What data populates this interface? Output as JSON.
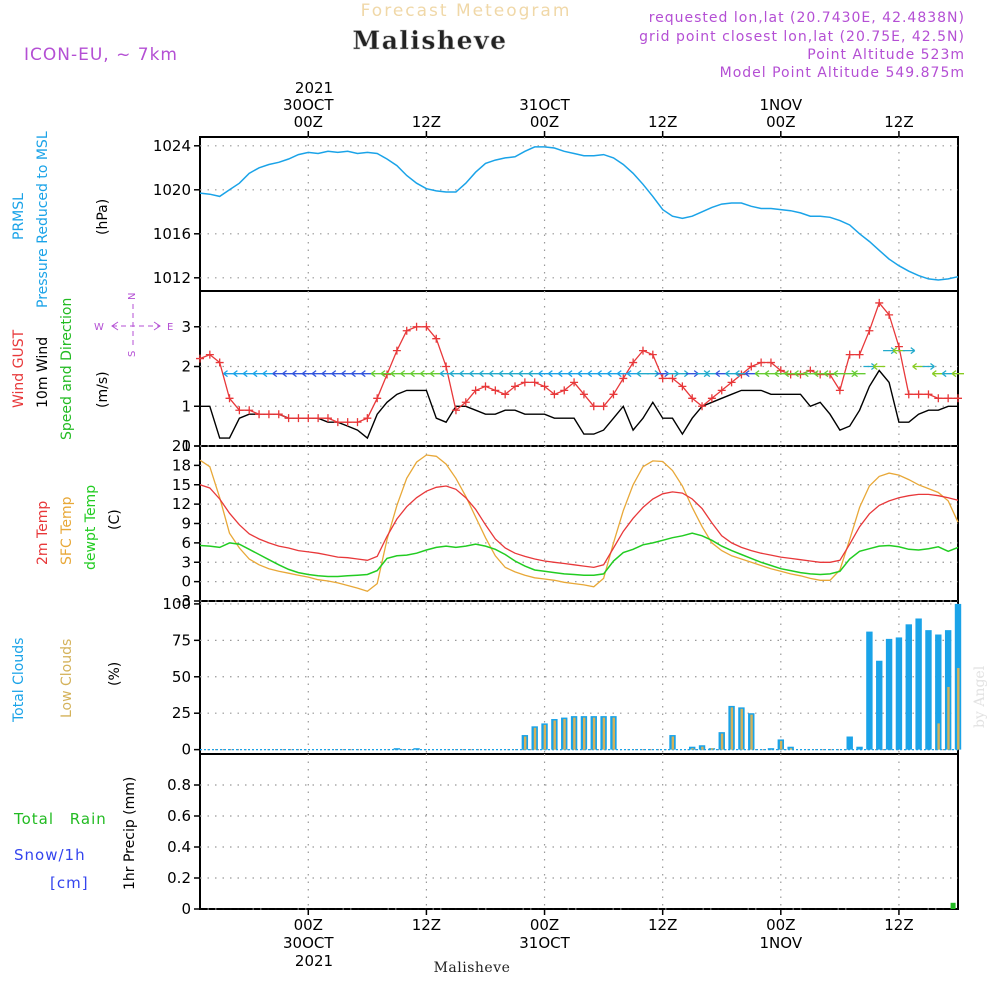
{
  "header": {
    "product": "Forecast Meteogram",
    "station": "Malisheve",
    "model": "ICON-EU, ~ 7km",
    "requested": "requested lon,lat (20.7430E, 42.4838N)",
    "grid_point": "grid point closest lon,lat (20.75E, 42.5N)",
    "point_altitude": "Point Altitude 523m",
    "model_altitude": "Model Point Altitude 549.875m",
    "footer_station": "Malisheve",
    "watermark": "by Angel"
  },
  "colors": {
    "pressure": "#1aa3e8",
    "gust": "#e8383a",
    "wind": "#000000",
    "dir_label": "#22bb22",
    "t2m": "#e8383a",
    "sfc": "#e8a838",
    "dew": "#22cc22",
    "total_cloud": "#1aa3e8",
    "low_cloud": "#d4b25a",
    "rain": "#22bb22",
    "snow": "#3344ee",
    "meta": "#b44fd4",
    "axis": "#000000"
  },
  "time_axis": {
    "top_year": "2021",
    "bottom_year": "2021",
    "ticks": [
      {
        "hour": 0,
        "label": "00Z",
        "date": "30OCT"
      },
      {
        "hour": 12,
        "label": "12Z",
        "date": ""
      },
      {
        "hour": 24,
        "label": "00Z",
        "date": "31OCT"
      },
      {
        "hour": 36,
        "label": "12Z",
        "date": ""
      },
      {
        "hour": 48,
        "label": "00Z",
        "date": "1NOV"
      },
      {
        "hour": 60,
        "label": "12Z",
        "date": ""
      }
    ],
    "range_hours": [
      -11,
      66
    ]
  },
  "chart_data": [
    {
      "type": "line",
      "panel": "pressure",
      "title": "PRMSL Pressure Reduced to MSL",
      "ylabel": "(hPa)",
      "label_lines": [
        "PRMSL",
        "Pressure Reduced to MSL"
      ],
      "unit": "(hPa)",
      "ylim": [
        1010.8,
        1024.8
      ],
      "yticks": [
        1012,
        1016,
        1020,
        1024
      ],
      "grid": true,
      "x_hours": [
        -11,
        -10,
        -9,
        -8,
        -7,
        -6,
        -5,
        -4,
        -3,
        -2,
        -1,
        0,
        1,
        2,
        3,
        4,
        5,
        6,
        7,
        8,
        9,
        10,
        11,
        12,
        13,
        14,
        15,
        16,
        17,
        18,
        19,
        20,
        21,
        22,
        23,
        24,
        25,
        26,
        27,
        28,
        29,
        30,
        31,
        32,
        33,
        34,
        35,
        36,
        37,
        38,
        39,
        40,
        41,
        42,
        43,
        44,
        45,
        46,
        47,
        48,
        49,
        50,
        51,
        52,
        53,
        54,
        55,
        56,
        57,
        58,
        59,
        60,
        61,
        62,
        63,
        64,
        65,
        66
      ],
      "series": [
        {
          "name": "PRMSL",
          "values": [
            1019.7,
            1019.6,
            1019.4,
            1020.0,
            1020.6,
            1021.5,
            1022.0,
            1022.3,
            1022.5,
            1022.8,
            1023.2,
            1023.4,
            1023.3,
            1023.5,
            1023.4,
            1023.5,
            1023.3,
            1023.4,
            1023.3,
            1022.8,
            1022.2,
            1021.3,
            1020.6,
            1020.1,
            1019.9,
            1019.8,
            1019.8,
            1020.6,
            1021.6,
            1022.4,
            1022.7,
            1022.9,
            1023.0,
            1023.5,
            1023.9,
            1023.9,
            1023.8,
            1023.5,
            1023.3,
            1023.1,
            1023.1,
            1023.2,
            1022.9,
            1022.3,
            1021.5,
            1020.5,
            1019.4,
            1018.2,
            1017.6,
            1017.4,
            1017.6,
            1018.0,
            1018.4,
            1018.7,
            1018.8,
            1018.8,
            1018.5,
            1018.3,
            1018.3,
            1018.2,
            1018.1,
            1017.9,
            1017.6,
            1017.6,
            1017.5,
            1017.2,
            1016.8,
            1016.0,
            1015.3,
            1014.5,
            1013.7,
            1013.1,
            1012.6,
            1012.2,
            1011.9,
            1011.8,
            1011.9,
            1012.1
          ]
        }
      ]
    },
    {
      "type": "line",
      "panel": "wind",
      "title": "Wind GUST / 10m Wind / Speed and Direction",
      "ylabel": "(m/s)",
      "label_wind_gust": "Wind GUST",
      "label_wind_10m": "10m Wind",
      "label_dir": "Speed and Direction",
      "unit": "(m/s)",
      "compass": {
        "N": "N",
        "E": "E",
        "S": "S",
        "W": "W"
      },
      "ylim": [
        0,
        3.9
      ],
      "yticks": [
        0,
        1,
        2,
        3
      ],
      "grid": true,
      "x_hours": [
        -11,
        -10,
        -9,
        -8,
        -7,
        -6,
        -5,
        -4,
        -3,
        -2,
        -1,
        0,
        1,
        2,
        3,
        4,
        5,
        6,
        7,
        8,
        9,
        10,
        11,
        12,
        13,
        14,
        15,
        16,
        17,
        18,
        19,
        20,
        21,
        22,
        23,
        24,
        25,
        26,
        27,
        28,
        29,
        30,
        31,
        32,
        33,
        34,
        35,
        36,
        37,
        38,
        39,
        40,
        41,
        42,
        43,
        44,
        45,
        46,
        47,
        48,
        49,
        50,
        51,
        52,
        53,
        54,
        55,
        56,
        57,
        58,
        59,
        60,
        61,
        62,
        63,
        64,
        65,
        66
      ],
      "series": [
        {
          "name": "Wind GUST",
          "marker": "+",
          "values": [
            2.2,
            2.3,
            2.1,
            1.2,
            0.9,
            0.9,
            0.8,
            0.8,
            0.8,
            0.7,
            0.7,
            0.7,
            0.7,
            0.7,
            0.6,
            0.6,
            0.6,
            0.7,
            1.2,
            1.8,
            2.4,
            2.9,
            3.0,
            3.0,
            2.7,
            2.0,
            0.9,
            1.1,
            1.4,
            1.5,
            1.4,
            1.3,
            1.5,
            1.6,
            1.6,
            1.5,
            1.3,
            1.4,
            1.6,
            1.3,
            1.0,
            1.0,
            1.3,
            1.7,
            2.1,
            2.4,
            2.3,
            1.7,
            1.7,
            1.5,
            1.2,
            1.0,
            1.2,
            1.4,
            1.6,
            1.8,
            2.0,
            2.1,
            2.1,
            1.9,
            1.8,
            1.8,
            1.9,
            1.8,
            1.8,
            1.4,
            2.3,
            2.3,
            2.9,
            3.6,
            3.3,
            2.5,
            1.3,
            1.3,
            1.3,
            1.2,
            1.2,
            1.2
          ]
        },
        {
          "name": "10m Wind",
          "values": [
            1.0,
            1.0,
            0.2,
            0.2,
            0.7,
            0.8,
            0.8,
            0.8,
            0.8,
            0.7,
            0.7,
            0.7,
            0.7,
            0.6,
            0.6,
            0.5,
            0.4,
            0.2,
            0.8,
            1.1,
            1.3,
            1.4,
            1.4,
            1.4,
            0.7,
            0.6,
            1.0,
            1.0,
            0.9,
            0.8,
            0.8,
            0.9,
            0.9,
            0.8,
            0.8,
            0.8,
            0.7,
            0.7,
            0.7,
            0.3,
            0.3,
            0.4,
            0.7,
            1.0,
            0.4,
            0.7,
            1.1,
            0.7,
            0.7,
            0.3,
            0.7,
            1.0,
            1.1,
            1.2,
            1.3,
            1.4,
            1.4,
            1.4,
            1.3,
            1.3,
            1.3,
            1.3,
            1.0,
            1.1,
            0.8,
            0.4,
            0.5,
            0.9,
            1.5,
            1.9,
            1.6,
            0.6,
            0.6,
            0.8,
            0.9,
            0.9,
            1.0,
            1.0
          ]
        },
        {
          "name": "Speed and Direction",
          "note": "wind barbs plotted along 10m wind speed ~1.8 m/s"
        }
      ]
    },
    {
      "type": "line",
      "panel": "temperature",
      "title": "2m Temp / SFC Temp / dewpt Temp",
      "ylabel": "(C)",
      "label_2m": "2m Temp",
      "label_sfc": "SFC Temp",
      "label_dew": "dewpt Temp",
      "unit": "(C)",
      "ylim": [
        -3,
        21
      ],
      "yticks": [
        -3,
        0,
        3,
        6,
        9,
        12,
        15,
        18,
        21
      ],
      "grid": true,
      "x_hours": [
        -11,
        -10,
        -9,
        -8,
        -7,
        -6,
        -5,
        -4,
        -3,
        -2,
        -1,
        0,
        1,
        2,
        3,
        4,
        5,
        6,
        7,
        8,
        9,
        10,
        11,
        12,
        13,
        14,
        15,
        16,
        17,
        18,
        19,
        20,
        21,
        22,
        23,
        24,
        25,
        26,
        27,
        28,
        29,
        30,
        31,
        32,
        33,
        34,
        35,
        36,
        37,
        38,
        39,
        40,
        41,
        42,
        43,
        44,
        45,
        46,
        47,
        48,
        49,
        50,
        51,
        52,
        53,
        54,
        55,
        56,
        57,
        58,
        59,
        60,
        61,
        62,
        63,
        64,
        65,
        66
      ],
      "series": [
        {
          "name": "2m Temp",
          "values": [
            15.0,
            14.5,
            12.8,
            10.6,
            8.8,
            7.4,
            6.6,
            6.0,
            5.5,
            5.2,
            4.8,
            4.6,
            4.4,
            4.1,
            3.8,
            3.7,
            3.5,
            3.3,
            3.9,
            7.0,
            9.7,
            11.6,
            13.0,
            14.0,
            14.6,
            14.8,
            14.3,
            13.0,
            11.2,
            8.8,
            6.6,
            5.2,
            4.4,
            3.9,
            3.5,
            3.2,
            3.0,
            2.8,
            2.6,
            2.4,
            2.2,
            2.6,
            5.2,
            7.8,
            9.8,
            11.5,
            12.8,
            13.6,
            13.9,
            13.7,
            12.8,
            11.3,
            9.1,
            7.1,
            6.0,
            5.3,
            4.8,
            4.4,
            4.1,
            3.8,
            3.6,
            3.4,
            3.2,
            3.0,
            3.0,
            3.3,
            5.8,
            8.5,
            10.5,
            11.8,
            12.5,
            13.0,
            13.3,
            13.5,
            13.5,
            13.3,
            13.0,
            12.6
          ]
        },
        {
          "name": "SFC Temp",
          "values": [
            18.8,
            17.8,
            13.0,
            7.5,
            5.2,
            3.5,
            2.6,
            2.0,
            1.6,
            1.3,
            1.0,
            0.7,
            0.3,
            0.1,
            -0.2,
            -0.6,
            -1.0,
            -1.5,
            -0.3,
            6.5,
            11.8,
            16.0,
            18.5,
            19.6,
            19.4,
            18.2,
            16.0,
            13.2,
            10.0,
            6.8,
            4.0,
            2.2,
            1.5,
            1.0,
            0.6,
            0.4,
            0.2,
            -0.1,
            -0.3,
            -0.5,
            -0.8,
            0.5,
            6.0,
            11.0,
            15.0,
            17.8,
            18.7,
            18.6,
            17.2,
            14.8,
            11.5,
            8.5,
            6.0,
            4.8,
            4.0,
            3.5,
            3.0,
            2.5,
            2.0,
            1.6,
            1.2,
            0.9,
            0.5,
            0.2,
            0.2,
            1.8,
            6.5,
            11.5,
            14.8,
            16.3,
            16.8,
            16.5,
            15.8,
            15.0,
            14.4,
            13.8,
            12.5,
            9.2
          ]
        },
        {
          "name": "dewpt Temp",
          "values": [
            5.6,
            5.5,
            5.3,
            6.0,
            5.8,
            5.0,
            4.2,
            3.4,
            2.6,
            1.9,
            1.4,
            1.1,
            0.9,
            0.8,
            0.8,
            0.9,
            1.0,
            1.1,
            1.7,
            3.6,
            4.0,
            4.1,
            4.4,
            4.9,
            5.3,
            5.5,
            5.3,
            5.5,
            5.8,
            5.5,
            5.0,
            4.2,
            3.2,
            2.4,
            1.8,
            1.6,
            1.4,
            1.2,
            1.1,
            1.0,
            1.0,
            1.2,
            3.2,
            4.5,
            5.0,
            5.7,
            6.0,
            6.4,
            6.8,
            7.1,
            7.5,
            7.1,
            6.4,
            5.5,
            4.8,
            4.2,
            3.6,
            3.0,
            2.5,
            2.0,
            1.7,
            1.4,
            1.2,
            1.1,
            1.2,
            1.6,
            3.5,
            4.7,
            5.1,
            5.5,
            5.6,
            5.4,
            5.0,
            4.9,
            5.1,
            5.4,
            4.7,
            5.3
          ]
        }
      ]
    },
    {
      "type": "bar",
      "panel": "clouds",
      "title": "Total Clouds / Low Clouds",
      "ylabel": "(%)",
      "label_total": "Total Clouds",
      "label_low": "Low Clouds",
      "unit": "(%)",
      "ylim": [
        -3,
        102
      ],
      "yticks": [
        0,
        25,
        50,
        75,
        100
      ],
      "grid": true,
      "x_hours": [
        -11,
        -10,
        -9,
        -8,
        -7,
        -6,
        -5,
        -4,
        -3,
        -2,
        -1,
        0,
        1,
        2,
        3,
        4,
        5,
        6,
        7,
        8,
        9,
        10,
        11,
        12,
        13,
        14,
        15,
        16,
        17,
        18,
        19,
        20,
        21,
        22,
        23,
        24,
        25,
        26,
        27,
        28,
        29,
        30,
        31,
        32,
        33,
        34,
        35,
        36,
        37,
        38,
        39,
        40,
        41,
        42,
        43,
        44,
        45,
        46,
        47,
        48,
        49,
        50,
        51,
        52,
        53,
        54,
        55,
        56,
        57,
        58,
        59,
        60,
        61,
        62,
        63,
        64,
        65,
        66
      ],
      "series": [
        {
          "name": "Total Clouds",
          "values": [
            0,
            0,
            0,
            0,
            0,
            0,
            0,
            0,
            0,
            0,
            0,
            0,
            0,
            0,
            0,
            0,
            0,
            0,
            0,
            0,
            1,
            0,
            1,
            0,
            0,
            0,
            0,
            0,
            0,
            0,
            0,
            0,
            0,
            10,
            16,
            18,
            21,
            22,
            23,
            23,
            23,
            23,
            23,
            0,
            0,
            0,
            0,
            0,
            10,
            0,
            2,
            3,
            1,
            12,
            30,
            29,
            25,
            0,
            1,
            7,
            2,
            0,
            0,
            0,
            0,
            0,
            9,
            2,
            81,
            61,
            76,
            77,
            86,
            90,
            82,
            79,
            82,
            100
          ]
        },
        {
          "name": "Low Clouds",
          "values": [
            0,
            0,
            0,
            0,
            0,
            0,
            0,
            0,
            0,
            0,
            0,
            0,
            0,
            0,
            0,
            0,
            0,
            0,
            0,
            0,
            0,
            0,
            0,
            0,
            0,
            0,
            0,
            0,
            0,
            0,
            0,
            0,
            0,
            9,
            15,
            17,
            20,
            21,
            22,
            22,
            22,
            22,
            22,
            0,
            0,
            0,
            0,
            0,
            9,
            0,
            1,
            2,
            1,
            11,
            29,
            28,
            24,
            0,
            0,
            6,
            1,
            0,
            0,
            0,
            0,
            0,
            0,
            0,
            0,
            0,
            0,
            0,
            0,
            0,
            0,
            18,
            43,
            56
          ]
        }
      ]
    },
    {
      "type": "bar",
      "panel": "precip",
      "title": "Total Rain / Snow/1h [cm] — 1hr Precip (mm)",
      "ylabel": "1hr Precip (mm)",
      "label_rain": "Total Rain",
      "label_snow": "Snow/1h",
      "label_snow_unit": "[cm]",
      "unit": "1hr Precip (mm)",
      "ylim": [
        0,
        1.0
      ],
      "yticks": [
        0,
        0.2,
        0.4,
        0.6,
        0.8
      ],
      "grid": true,
      "x_hours": [
        65.5
      ],
      "series": [
        {
          "name": "Total Rain",
          "values": [
            0.04
          ]
        },
        {
          "name": "Snow/1h",
          "values": [
            0
          ]
        }
      ]
    }
  ]
}
